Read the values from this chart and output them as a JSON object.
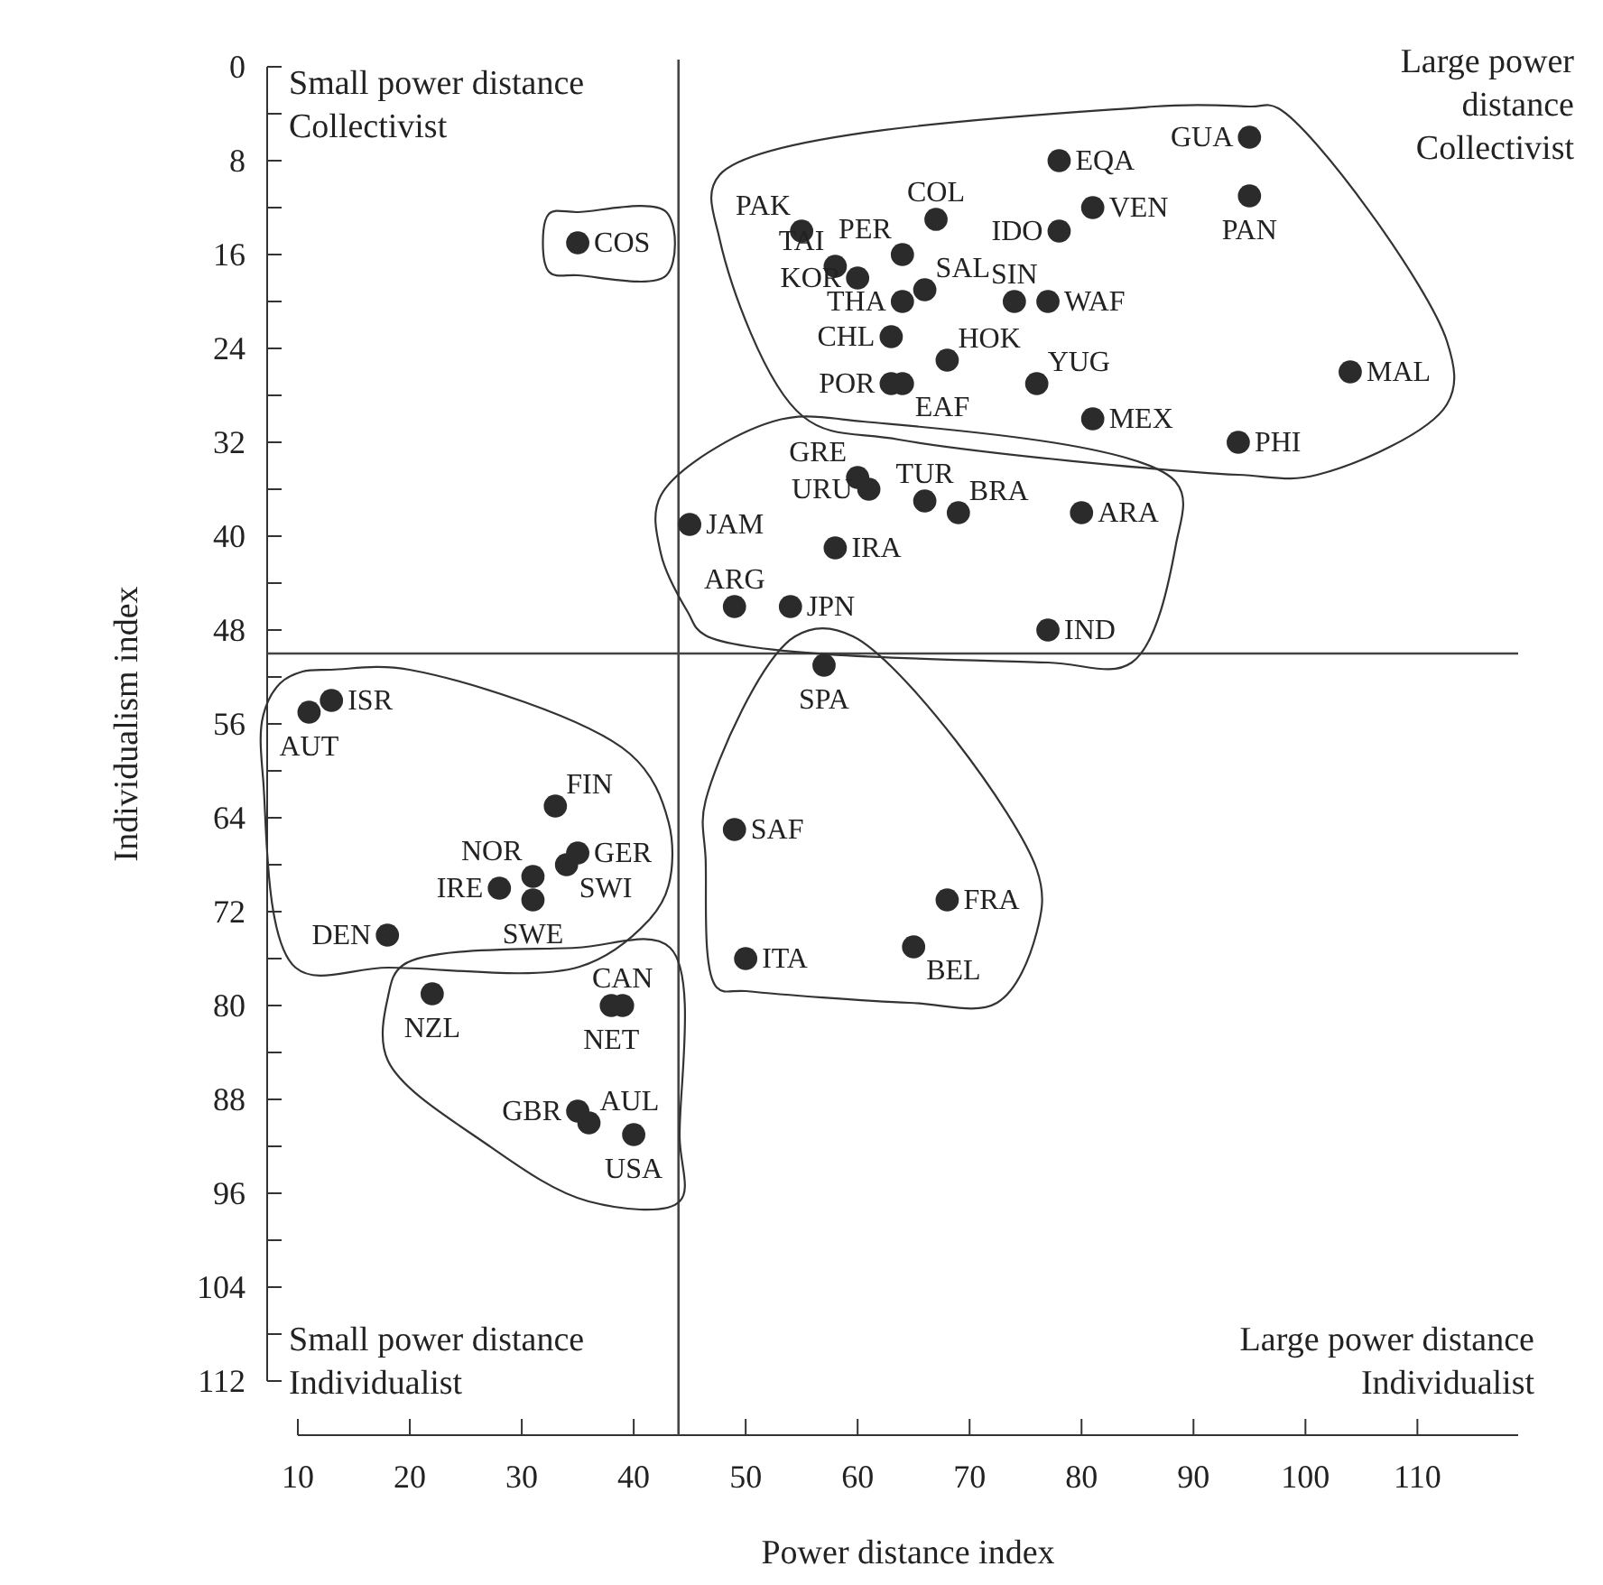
{
  "chart_data": {
    "type": "scatter",
    "xlabel": "Power distance index",
    "ylabel": "Individualism index",
    "marker": "circle",
    "xlim": [
      10,
      119
    ],
    "ylim": [
      112,
      0
    ],
    "xticks": [
      10,
      20,
      30,
      40,
      50,
      60,
      70,
      80,
      90,
      100,
      110
    ],
    "yticks": [
      0,
      {
        "value": 4,
        "label": null
      },
      8,
      {
        "value": 12,
        "label": null
      },
      16,
      {
        "value": 20,
        "label": null
      },
      24,
      {
        "value": 28,
        "label": null
      },
      32,
      {
        "value": 36,
        "label": null
      },
      40,
      {
        "value": 44,
        "label": null
      },
      48,
      {
        "value": 52,
        "label": null
      },
      56,
      {
        "value": 60,
        "label": null
      },
      64,
      {
        "value": 68,
        "label": null
      },
      72,
      {
        "value": 76,
        "label": null
      },
      80,
      {
        "value": 84,
        "label": null
      },
      88,
      {
        "value": 92,
        "label": null
      },
      96,
      {
        "value": 100,
        "label": null
      },
      104,
      {
        "value": 108,
        "label": null
      },
      112
    ],
    "ref_lines": [
      {
        "axis": "x",
        "value": 44
      },
      {
        "axis": "y",
        "value": 50
      }
    ],
    "annotations": [
      "Small power distance\nCollectivist",
      "Large power\ndistance\nCollectivist",
      "Small power distance\nIndividualist",
      "Large power distance\nIndividualist"
    ],
    "series": [
      {
        "name": "AUT",
        "color": "#2b2b2b",
        "x": [
          11
        ],
        "values": [
          55
        ]
      },
      {
        "name": "ISR",
        "color": "#2b2b2b",
        "x": [
          13
        ],
        "values": [
          54
        ]
      },
      {
        "name": "DEN",
        "color": "#2b2b2b",
        "x": [
          18
        ],
        "values": [
          74
        ]
      },
      {
        "name": "NZL",
        "color": "#2b2b2b",
        "x": [
          22
        ],
        "values": [
          79
        ]
      },
      {
        "name": "IRE",
        "color": "#2b2b2b",
        "x": [
          28
        ],
        "values": [
          70
        ]
      },
      {
        "name": "SWE",
        "color": "#2b2b2b",
        "x": [
          31
        ],
        "values": [
          71
        ]
      },
      {
        "name": "NOR",
        "color": "#2b2b2b",
        "x": [
          31
        ],
        "values": [
          69
        ]
      },
      {
        "name": "FIN",
        "color": "#2b2b2b",
        "x": [
          33
        ],
        "values": [
          63
        ]
      },
      {
        "name": "SWI",
        "color": "#2b2b2b",
        "x": [
          34
        ],
        "values": [
          68
        ]
      },
      {
        "name": "GBR",
        "color": "#2b2b2b",
        "x": [
          35
        ],
        "values": [
          89
        ]
      },
      {
        "name": "GER",
        "color": "#2b2b2b",
        "x": [
          35
        ],
        "values": [
          67
        ]
      },
      {
        "name": "COS",
        "color": "#2b2b2b",
        "x": [
          35
        ],
        "values": [
          15
        ]
      },
      {
        "name": "AUL",
        "color": "#2b2b2b",
        "x": [
          36
        ],
        "values": [
          90
        ]
      },
      {
        "name": "NET",
        "color": "#2b2b2b",
        "x": [
          38
        ],
        "values": [
          80
        ]
      },
      {
        "name": "CAN",
        "color": "#2b2b2b",
        "x": [
          39
        ],
        "values": [
          80
        ]
      },
      {
        "name": "USA",
        "color": "#2b2b2b",
        "x": [
          40
        ],
        "values": [
          91
        ]
      },
      {
        "name": "JAM",
        "color": "#2b2b2b",
        "x": [
          45
        ],
        "values": [
          39
        ]
      },
      {
        "name": "ARG",
        "color": "#2b2b2b",
        "x": [
          49
        ],
        "values": [
          46
        ]
      },
      {
        "name": "SAF",
        "color": "#2b2b2b",
        "x": [
          49
        ],
        "values": [
          65
        ]
      },
      {
        "name": "ITA",
        "color": "#2b2b2b",
        "x": [
          50
        ],
        "values": [
          76
        ]
      },
      {
        "name": "JPN",
        "color": "#2b2b2b",
        "x": [
          54
        ],
        "values": [
          46
        ]
      },
      {
        "name": "SPA",
        "color": "#2b2b2b",
        "x": [
          57
        ],
        "values": [
          51
        ]
      },
      {
        "name": "PAK",
        "color": "#2b2b2b",
        "x": [
          55
        ],
        "values": [
          14
        ]
      },
      {
        "name": "GRE",
        "color": "#2b2b2b",
        "x": [
          60
        ],
        "values": [
          35
        ]
      },
      {
        "name": "URU",
        "color": "#2b2b2b",
        "x": [
          61
        ],
        "values": [
          36
        ]
      },
      {
        "name": "IRA",
        "color": "#2b2b2b",
        "x": [
          58
        ],
        "values": [
          41
        ]
      },
      {
        "name": "TAI",
        "color": "#2b2b2b",
        "x": [
          58
        ],
        "values": [
          17
        ]
      },
      {
        "name": "KOR",
        "color": "#2b2b2b",
        "x": [
          60
        ],
        "values": [
          18
        ]
      },
      {
        "name": "EAF",
        "color": "#2b2b2b",
        "x": [
          64
        ],
        "values": [
          27
        ]
      },
      {
        "name": "PER",
        "color": "#2b2b2b",
        "x": [
          64
        ],
        "values": [
          16
        ]
      },
      {
        "name": "THA",
        "color": "#2b2b2b",
        "x": [
          64
        ],
        "values": [
          20
        ]
      },
      {
        "name": "CHL",
        "color": "#2b2b2b",
        "x": [
          63
        ],
        "values": [
          23
        ]
      },
      {
        "name": "POR",
        "color": "#2b2b2b",
        "x": [
          63
        ],
        "values": [
          27
        ]
      },
      {
        "name": "TUR",
        "color": "#2b2b2b",
        "x": [
          66
        ],
        "values": [
          37
        ]
      },
      {
        "name": "COL",
        "color": "#2b2b2b",
        "x": [
          67
        ],
        "values": [
          13
        ]
      },
      {
        "name": "SAL",
        "color": "#2b2b2b",
        "x": [
          66
        ],
        "values": [
          19
        ]
      },
      {
        "name": "HOK",
        "color": "#2b2b2b",
        "x": [
          68
        ],
        "values": [
          25
        ]
      },
      {
        "name": "BRA",
        "color": "#2b2b2b",
        "x": [
          69
        ],
        "values": [
          38
        ]
      },
      {
        "name": "FRA",
        "color": "#2b2b2b",
        "x": [
          68
        ],
        "values": [
          71
        ]
      },
      {
        "name": "BEL",
        "color": "#2b2b2b",
        "x": [
          65
        ],
        "values": [
          75
        ]
      },
      {
        "name": "SIN",
        "color": "#2b2b2b",
        "x": [
          74
        ],
        "values": [
          20
        ]
      },
      {
        "name": "WAF",
        "color": "#2b2b2b",
        "x": [
          77
        ],
        "values": [
          20
        ]
      },
      {
        "name": "YUG",
        "color": "#2b2b2b",
        "x": [
          76
        ],
        "values": [
          27
        ]
      },
      {
        "name": "EQA",
        "color": "#2b2b2b",
        "x": [
          78
        ],
        "values": [
          8
        ]
      },
      {
        "name": "IDO",
        "color": "#2b2b2b",
        "x": [
          78
        ],
        "values": [
          14
        ]
      },
      {
        "name": "IND",
        "color": "#2b2b2b",
        "x": [
          77
        ],
        "values": [
          48
        ]
      },
      {
        "name": "ARA",
        "color": "#2b2b2b",
        "x": [
          80
        ],
        "values": [
          38
        ]
      },
      {
        "name": "MEX",
        "color": "#2b2b2b",
        "x": [
          81
        ],
        "values": [
          30
        ]
      },
      {
        "name": "VEN",
        "color": "#2b2b2b",
        "x": [
          81
        ],
        "values": [
          12
        ]
      },
      {
        "name": "PHI",
        "color": "#2b2b2b",
        "x": [
          94
        ],
        "values": [
          32
        ]
      },
      {
        "name": "GUA",
        "color": "#2b2b2b",
        "x": [
          95
        ],
        "values": [
          6
        ]
      },
      {
        "name": "PAN",
        "color": "#2b2b2b",
        "x": [
          95
        ],
        "values": [
          11
        ]
      },
      {
        "name": "MAL",
        "color": "#2b2b2b",
        "x": [
          104
        ],
        "values": [
          26
        ]
      }
    ]
  }
}
